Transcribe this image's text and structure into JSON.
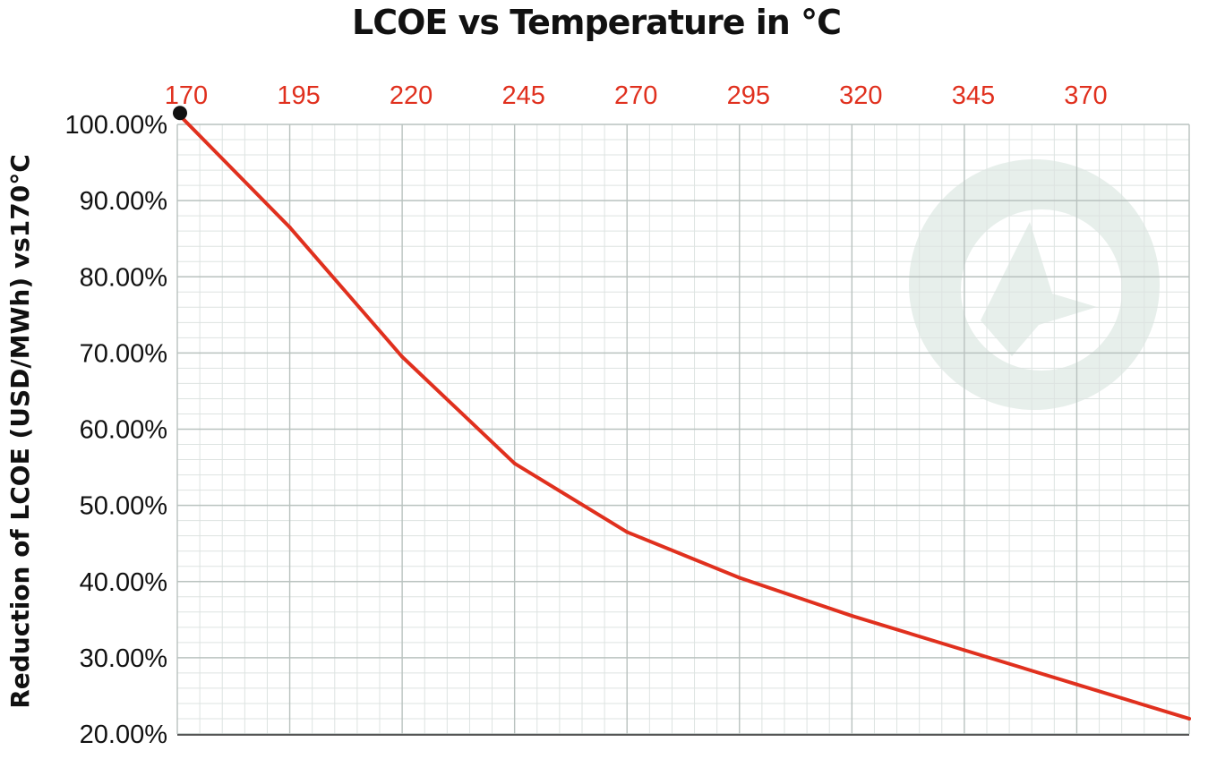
{
  "colors": {
    "line": "#e0301e",
    "tick_x": "#e0301e",
    "grid_major": "#b9c2bf",
    "grid_minor": "#dde3e1",
    "marker": "#111111",
    "watermark": "#e7efeb"
  },
  "chart_data": {
    "type": "line",
    "title": "LCOE vs Temperature in °C",
    "xlabel": "",
    "ylabel": "Reduction of LCOE (USD/MWh) vs170°C",
    "x_ticks": [
      "170",
      "195",
      "220",
      "245",
      "270",
      "295",
      "320",
      "345",
      "370"
    ],
    "y_ticks": [
      "100.00%",
      "90.00%",
      "80.00%",
      "70.00%",
      "60.00%",
      "50.00%",
      "40.00%",
      "30.00%",
      "20.00%"
    ],
    "x_axis_position": "top",
    "xlim": [
      170,
      395
    ],
    "ylim": [
      20,
      100
    ],
    "grid": true,
    "watermark_icon": "logo-watermark-icon",
    "series": [
      {
        "x": [
          170,
          195,
          220,
          245,
          270,
          295,
          320,
          345,
          370,
          395
        ],
        "y": [
          101.5,
          86.5,
          69.5,
          55.5,
          46.5,
          40.5,
          35.5,
          31,
          26.5,
          22
        ]
      }
    ]
  }
}
